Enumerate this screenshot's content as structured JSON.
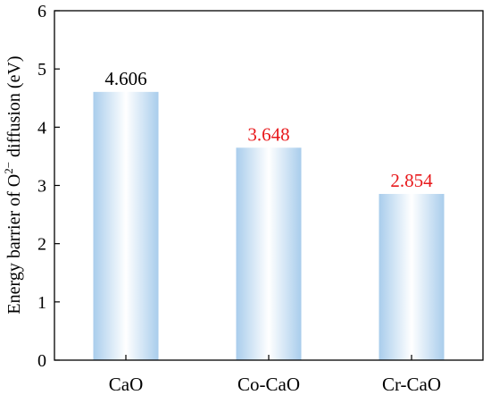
{
  "chart_data": {
    "type": "bar",
    "categories": [
      "CaO",
      "Co-CaO",
      "Cr-CaO"
    ],
    "values": [
      4.606,
      3.648,
      2.854
    ],
    "value_labels": [
      "4.606",
      "3.648",
      "2.854"
    ],
    "value_label_colors": [
      "#000000",
      "#e8191c",
      "#e8191c"
    ],
    "ylabel": {
      "prefix": "Energy barrier of O",
      "superscript": "2−",
      "suffix": " diffusion (eV)"
    },
    "ylim": [
      0,
      6
    ],
    "yticks": [
      "0",
      "1",
      "2",
      "3",
      "4",
      "5",
      "6"
    ],
    "grid": false,
    "bar_gradient": [
      "#a9cdec",
      "#ffffff",
      "#a9cdec"
    ]
  }
}
